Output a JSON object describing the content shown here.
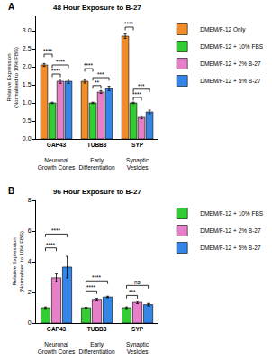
{
  "chart_data": [
    {
      "type": "bar",
      "panel_label": "A",
      "title": "48 Hour Exposure to B-27",
      "y_label": "Relative Expression (Normalised to 10% FBS)",
      "categories": [
        "GAP43",
        "TUBB3",
        "SYP"
      ],
      "category_descriptions": [
        "Neuronal Growth Cones",
        "Early Differentiation",
        "Synaptic Vesicles"
      ],
      "series": [
        {
          "name": "DMEM/F-12 Only",
          "color": "#F28C28",
          "values": [
            2.05,
            1.6,
            2.85
          ],
          "errors": [
            0.04,
            0.05,
            0.06
          ]
        },
        {
          "name": "DMEM/F-12 + 10% FBS",
          "color": "#33CC33",
          "values": [
            1.0,
            1.0,
            1.0
          ],
          "errors": [
            0.02,
            0.02,
            0.02
          ]
        },
        {
          "name": "DMEM/F-12 + 2% B-27",
          "color": "#E67FC8",
          "values": [
            1.6,
            1.3,
            0.6
          ],
          "errors": [
            0.06,
            0.04,
            0.04
          ]
        },
        {
          "name": "DMEM/F-12 + 5% B-27",
          "color": "#3385E6",
          "values": [
            1.6,
            1.4,
            0.75
          ],
          "errors": [
            0.06,
            0.06,
            0.05
          ]
        }
      ],
      "significance": [
        {
          "category": 0,
          "from": 0,
          "to": 1,
          "y": 2.35,
          "label": "****"
        },
        {
          "category": 0,
          "from": 1,
          "to": 2,
          "y": 1.8,
          "label": "****"
        },
        {
          "category": 0,
          "from": 1,
          "to": 3,
          "y": 2.05,
          "label": "****"
        },
        {
          "category": 1,
          "from": 0,
          "to": 1,
          "y": 1.95,
          "label": "****"
        },
        {
          "category": 1,
          "from": 1,
          "to": 2,
          "y": 1.48,
          "label": "**"
        },
        {
          "category": 1,
          "from": 1,
          "to": 3,
          "y": 1.7,
          "label": "***"
        },
        {
          "category": 2,
          "from": 0,
          "to": 1,
          "y": 3.1,
          "label": "****"
        },
        {
          "category": 2,
          "from": 1,
          "to": 2,
          "y": 1.15,
          "label": "****"
        },
        {
          "category": 2,
          "from": 1,
          "to": 3,
          "y": 1.38,
          "label": "***"
        }
      ],
      "ylim": [
        0,
        3.4
      ],
      "yticks": [
        {
          "value": 0,
          "label": "0.0"
        },
        0.5,
        {
          "value": 1,
          "label": "1.0"
        },
        1.5,
        {
          "value": 2,
          "label": "2.0"
        },
        2.5,
        {
          "value": 3,
          "label": "3.0"
        }
      ],
      "legend": "right"
    },
    {
      "type": "bar",
      "panel_label": "B",
      "title": "96 Hour Exposure to B-27",
      "y_label": "Relative Expression (Normalised to 10% FBS)",
      "categories": [
        "GAP43",
        "TUBB3",
        "SYP"
      ],
      "category_descriptions": [
        "Neuronal Growth Cones",
        "Early Differentiation",
        "Synaptic Vesicles"
      ],
      "series": [
        {
          "name": "DMEM/F-12 + 10% FBS",
          "color": "#33CC33",
          "values": [
            1.0,
            1.0,
            1.0
          ],
          "errors": [
            0.05,
            0.03,
            0.05
          ]
        },
        {
          "name": "DMEM/F-12 + 2% B-27",
          "color": "#E67FC8",
          "values": [
            2.95,
            1.55,
            1.35
          ],
          "errors": [
            0.25,
            0.06,
            0.08
          ]
        },
        {
          "name": "DMEM/F-12 + 5% B-27",
          "color": "#3385E6",
          "values": [
            3.65,
            1.7,
            1.2
          ],
          "errors": [
            0.7,
            0.05,
            0.08
          ]
        }
      ],
      "significance": [
        {
          "category": 0,
          "from": 0,
          "to": 1,
          "y": 4.9,
          "label": "****"
        },
        {
          "category": 0,
          "from": 0,
          "to": 2,
          "y": 5.8,
          "label": "****"
        },
        {
          "category": 1,
          "from": 0,
          "to": 1,
          "y": 2.1,
          "label": "****"
        },
        {
          "category": 1,
          "from": 0,
          "to": 2,
          "y": 2.75,
          "label": "****"
        },
        {
          "category": 2,
          "from": 0,
          "to": 1,
          "y": 1.8,
          "label": "***"
        },
        {
          "category": 2,
          "from": 0,
          "to": 2,
          "y": 2.45,
          "label": "ns"
        }
      ],
      "ylim": [
        0,
        8
      ],
      "yticks": [
        0,
        2,
        4,
        6,
        8
      ],
      "legend": "right"
    }
  ]
}
